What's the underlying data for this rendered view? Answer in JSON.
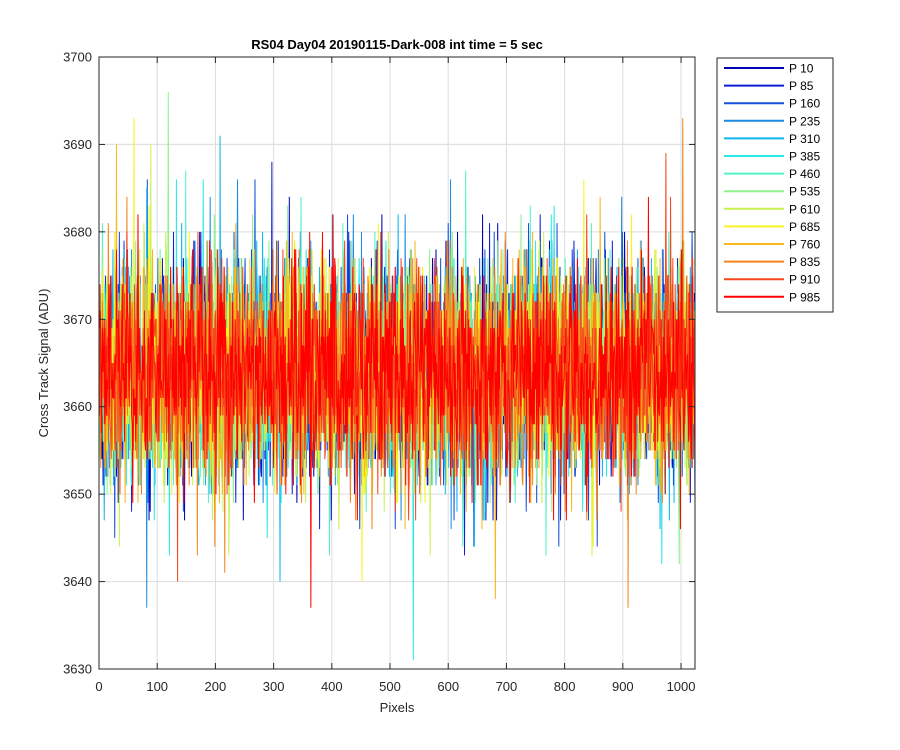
{
  "chart_data": {
    "type": "line",
    "title": "RS04 Day04 20190115-Dark-008 int time = 5 sec",
    "xlabel": "Pixels",
    "ylabel": "Cross Track Signal (ADU)",
    "xlim": [
      0,
      1024
    ],
    "ylim": [
      3630,
      3700
    ],
    "xticks": [
      0,
      100,
      200,
      300,
      400,
      500,
      600,
      700,
      800,
      900,
      1000
    ],
    "yticks": [
      3630,
      3640,
      3650,
      3660,
      3670,
      3680,
      3690,
      3700
    ],
    "grid": true,
    "legend_position": "outside-right",
    "x_range": [
      1,
      1024
    ],
    "series_mean": 3664,
    "series_spread": 6,
    "series": [
      {
        "name": "P 10",
        "color": "#0000b4",
        "max": 3684,
        "min": 3647
      },
      {
        "name": "P 85",
        "color": "#0f1ed2",
        "max": 3688,
        "min": 3643
      },
      {
        "name": "P 160",
        "color": "#1450d9",
        "max": 3686,
        "min": 3644
      },
      {
        "name": "P 235",
        "color": "#1a8ce6",
        "max": 3686,
        "min": 3637
      },
      {
        "name": "P 310",
        "color": "#10b4ee",
        "max": 3691,
        "min": 3640
      },
      {
        "name": "P 385",
        "color": "#28e8e8",
        "max": 3686,
        "min": 3631
      },
      {
        "name": "P 460",
        "color": "#50f2c8",
        "max": 3687,
        "min": 3643
      },
      {
        "name": "P 535",
        "color": "#8ef28e",
        "max": 3696,
        "min": 3642
      },
      {
        "name": "P 610",
        "color": "#c8f250",
        "max": 3690,
        "min": 3643
      },
      {
        "name": "P 685",
        "color": "#f8f21e",
        "max": 3693,
        "min": 3640
      },
      {
        "name": "P 760",
        "color": "#f6b81c",
        "max": 3690,
        "min": 3638
      },
      {
        "name": "P 835",
        "color": "#f6841c",
        "max": 3693,
        "min": 3637
      },
      {
        "name": "P 910",
        "color": "#f5461c",
        "max": 3689,
        "min": 3640
      },
      {
        "name": "P 985",
        "color": "#ff0000",
        "max": 3684,
        "min": 3637
      }
    ]
  }
}
